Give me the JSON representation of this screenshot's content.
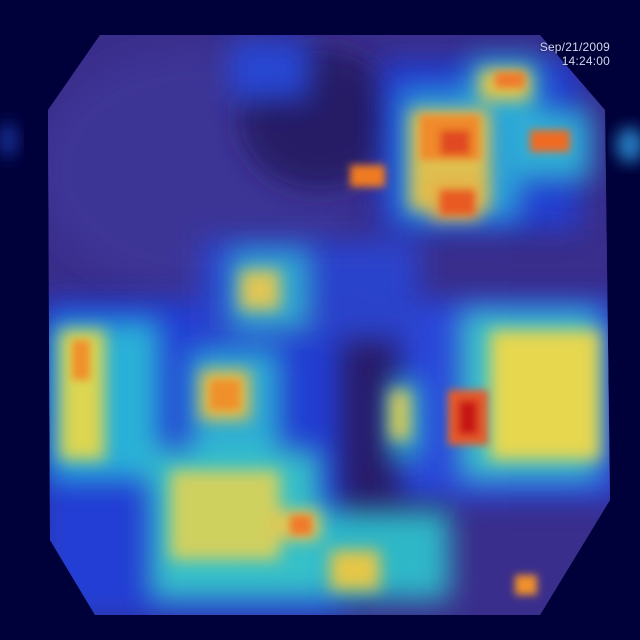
{
  "image": {
    "kind": "endoscopic frame with attention heatmap overlay",
    "colormap": [
      "#00003a",
      "#1f2fd6",
      "#27c9d9",
      "#f2e24a",
      "#f28a2a",
      "#d42020"
    ],
    "timestamp": {
      "date": "Sep/21/2009",
      "time": "14:24:00"
    }
  }
}
